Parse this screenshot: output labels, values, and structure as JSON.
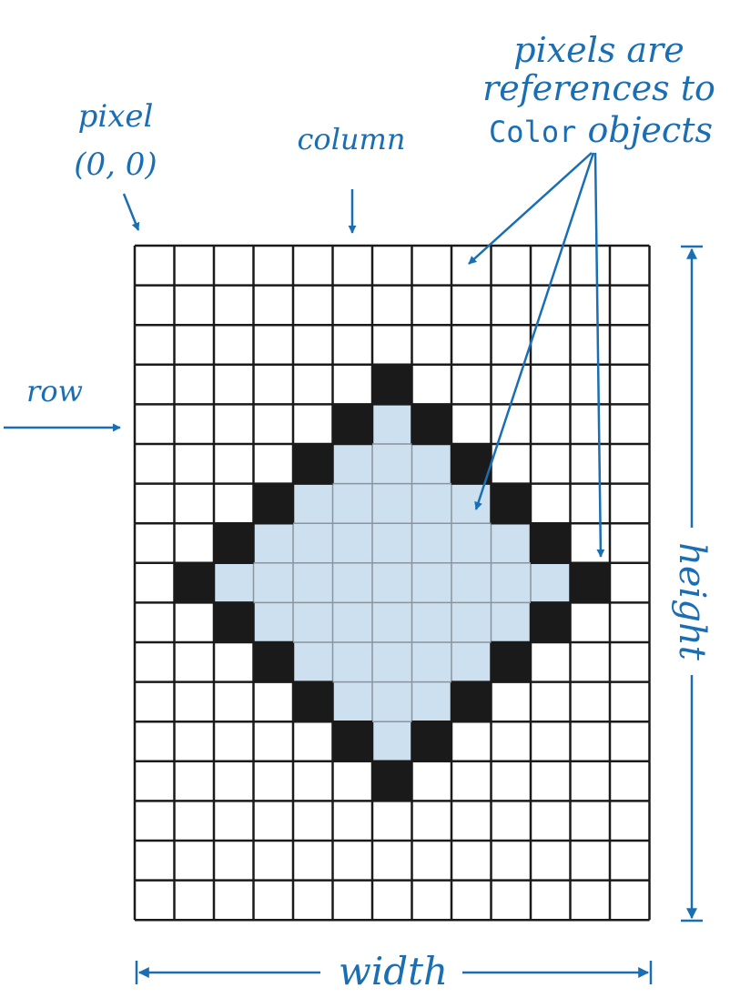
{
  "labels": {
    "pixel_origin_line1": "pixel",
    "pixel_origin_line2": "(0, 0)",
    "column": "column",
    "row": "row",
    "refs_line1": "pixels are",
    "refs_line2": "references to",
    "refs_code": "Color",
    "refs_line3_rest": " objects",
    "height": "height",
    "width": "width"
  },
  "grid": {
    "columns": 13,
    "rows": 17,
    "pixels": [
      "0000000000000",
      "0000000000000",
      "0000000000000",
      "0000002000000",
      "0000021200000",
      "0000211120000",
      "0002111112000",
      "0021111111200",
      "0211111111120",
      "0021111111200",
      "0002111112000",
      "0000211120000",
      "0000021200000",
      "0000002000000",
      "0000000000000",
      "0000000000000",
      "0000000000000"
    ]
  },
  "colors": {
    "accent": "#1a6eb3",
    "grid_line": "#1a1a1a",
    "pixel_white": "#ffffff",
    "pixel_light_blue": "#cce0f0",
    "pixel_black": "#1a1a1a",
    "inner_line": "#8a949c"
  }
}
